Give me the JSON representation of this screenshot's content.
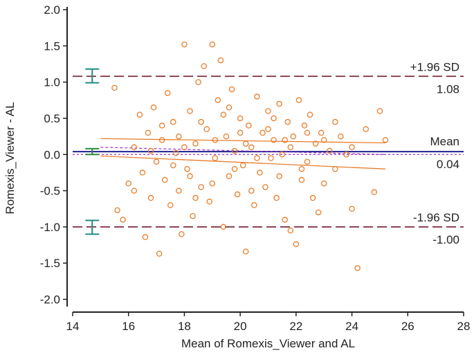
{
  "chart_data": {
    "type": "scatter",
    "xlabel": "Mean of Romexis_Viewer and AL",
    "ylabel": "Romexis_Viewer - AL",
    "xlim": [
      14,
      28
    ],
    "ylim": [
      -2.1,
      2.0
    ],
    "x_ticks": [
      "14",
      "16",
      "18",
      "20",
      "22",
      "24",
      "26",
      "28"
    ],
    "y_ticks": [
      "2.0",
      "1.5",
      "1.0",
      "0.5",
      "0.0",
      "-0.5",
      "-1.0",
      "-1.5",
      "-2.0"
    ],
    "grid": false,
    "marker_color": "#e87d2a",
    "colors": {
      "mean_line": "#1f1f8f",
      "limit_lines": "#7a2a3a",
      "ci_bars": "#1f8a80",
      "regression": "#e87d2a",
      "zero_line": "#9b2fc7"
    },
    "mean": {
      "value": 0.04,
      "label": "Mean",
      "value_label": "0.04"
    },
    "upper_loa": {
      "value": 1.08,
      "label": "+1.96 SD",
      "value_label": "1.08"
    },
    "lower_loa": {
      "value": -1.0,
      "label": "-1.96 SD",
      "value_label": "-1.00"
    },
    "ci_bars": {
      "x": 14.7,
      "upper": [
        0.99,
        1.18
      ],
      "mean": [
        0.0,
        0.08
      ],
      "lower": [
        -1.1,
        -0.91
      ]
    },
    "regression": {
      "x": [
        15.0,
        25.2
      ],
      "center": [
        0.1,
        0.0
      ],
      "upper": [
        0.22,
        0.16
      ],
      "lower": [
        -0.02,
        -0.2
      ]
    },
    "points": [
      [
        15.5,
        0.92
      ],
      [
        15.6,
        -0.77
      ],
      [
        15.8,
        -0.9
      ],
      [
        16.0,
        -0.4
      ],
      [
        16.2,
        0.1
      ],
      [
        16.4,
        0.55
      ],
      [
        16.5,
        -0.25
      ],
      [
        16.6,
        -1.14
      ],
      [
        16.7,
        0.3
      ],
      [
        16.8,
        -0.6
      ],
      [
        16.9,
        0.65
      ],
      [
        17.0,
        -0.1
      ],
      [
        17.1,
        -1.37
      ],
      [
        17.2,
        0.2
      ],
      [
        17.3,
        -0.35
      ],
      [
        17.4,
        0.85
      ],
      [
        17.5,
        -0.7
      ],
      [
        17.6,
        0.45
      ],
      [
        17.7,
        0.02
      ],
      [
        17.8,
        -0.5
      ],
      [
        17.9,
        -1.1
      ],
      [
        18.0,
        1.52
      ],
      [
        18.1,
        -0.2
      ],
      [
        18.2,
        0.6
      ],
      [
        18.3,
        -0.85
      ],
      [
        18.4,
        0.15
      ],
      [
        18.5,
        1.0
      ],
      [
        18.6,
        -0.45
      ],
      [
        18.7,
        1.22
      ],
      [
        18.8,
        0.35
      ],
      [
        18.9,
        -0.65
      ],
      [
        19.0,
        1.52
      ],
      [
        19.1,
        -0.05
      ],
      [
        19.2,
        0.75
      ],
      [
        19.3,
        1.3
      ],
      [
        19.4,
        -1.0
      ],
      [
        19.5,
        0.25
      ],
      [
        19.6,
        -0.3
      ],
      [
        19.7,
        0.9
      ],
      [
        19.8,
        0.05
      ],
      [
        19.9,
        -0.55
      ],
      [
        20.0,
        0.5
      ],
      [
        20.1,
        -0.15
      ],
      [
        20.2,
        -1.34
      ],
      [
        20.3,
        0.4
      ],
      [
        20.4,
        0.1
      ],
      [
        20.5,
        -0.7
      ],
      [
        20.6,
        0.8
      ],
      [
        20.7,
        -0.25
      ],
      [
        20.8,
        0.3
      ],
      [
        20.9,
        -0.45
      ],
      [
        21.0,
        0.6
      ],
      [
        21.1,
        -0.05
      ],
      [
        21.2,
        0.2
      ],
      [
        21.3,
        -0.6
      ],
      [
        21.4,
        0.7
      ],
      [
        21.5,
        0.0
      ],
      [
        21.6,
        -0.9
      ],
      [
        21.7,
        0.45
      ],
      [
        21.8,
        -1.05
      ],
      [
        21.9,
        0.25
      ],
      [
        22.0,
        -1.24
      ],
      [
        22.1,
        0.75
      ],
      [
        22.2,
        -0.35
      ],
      [
        22.3,
        0.4
      ],
      [
        22.4,
        -0.1
      ],
      [
        22.5,
        0.55
      ],
      [
        22.6,
        -0.6
      ],
      [
        22.7,
        0.15
      ],
      [
        22.8,
        -0.8
      ],
      [
        22.9,
        0.3
      ],
      [
        23.0,
        -0.4
      ],
      [
        23.2,
        0.05
      ],
      [
        23.4,
        -0.2
      ],
      [
        23.6,
        0.25
      ],
      [
        23.8,
        0.0
      ],
      [
        24.0,
        -0.75
      ],
      [
        24.2,
        -1.57
      ],
      [
        24.5,
        0.35
      ],
      [
        24.8,
        -0.52
      ],
      [
        25.0,
        0.6
      ],
      [
        25.2,
        0.2
      ],
      [
        17.2,
        0.4
      ],
      [
        17.6,
        -0.15
      ],
      [
        18.2,
        -0.3
      ],
      [
        18.6,
        0.45
      ],
      [
        19.1,
        0.2
      ],
      [
        19.4,
        0.55
      ],
      [
        19.8,
        -0.2
      ],
      [
        20.2,
        0.15
      ],
      [
        20.6,
        -0.05
      ],
      [
        21.0,
        0.35
      ],
      [
        21.4,
        -0.3
      ],
      [
        21.8,
        0.1
      ],
      [
        22.4,
        0.3
      ],
      [
        23.0,
        0.2
      ],
      [
        18.4,
        -0.6
      ],
      [
        19.6,
        0.65
      ],
      [
        20.4,
        -0.5
      ],
      [
        21.2,
        0.5
      ],
      [
        22.2,
        -0.2
      ],
      [
        18.0,
        0.1
      ],
      [
        19.0,
        -0.4
      ],
      [
        20.0,
        0.3
      ],
      [
        21.6,
        0.2
      ],
      [
        23.4,
        0.45
      ],
      [
        16.2,
        -0.5
      ],
      [
        16.8,
        0.05
      ],
      [
        17.8,
        0.25
      ],
      [
        24.0,
        0.1
      ]
    ]
  }
}
